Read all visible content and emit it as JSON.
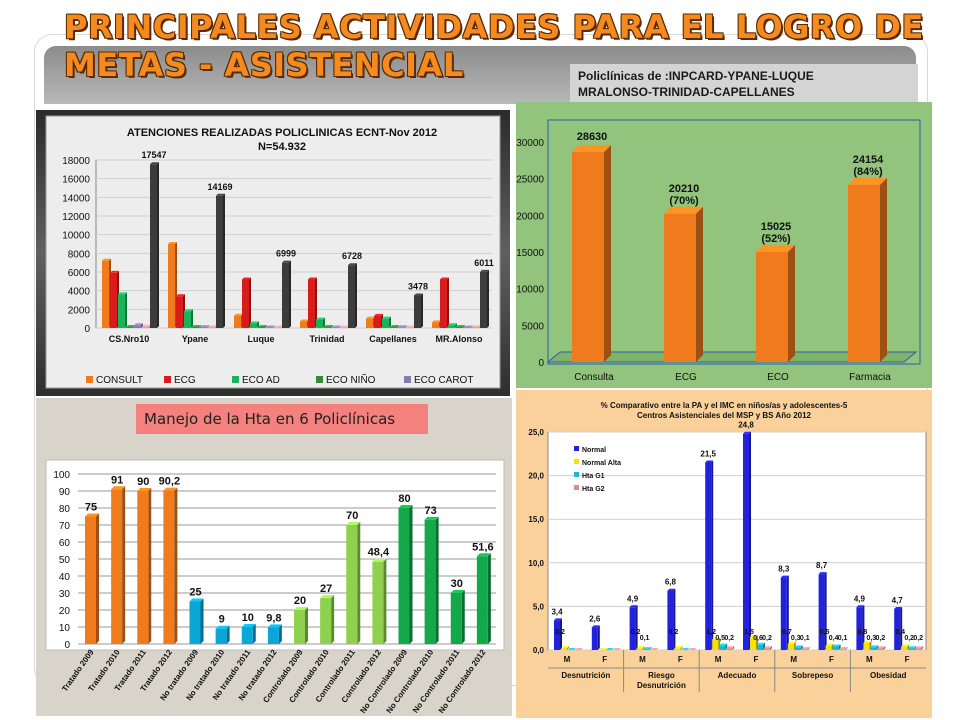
{
  "header": {
    "title": "PRINCIPALES ACTIVIDADES PARA EL LOGRO DE METAS - ASISTENCIAL",
    "subtitle_line1": "Policlínicas de :INPCARD-YPANE-LUQUE",
    "subtitle_line2": "MRALONSO-TRINIDAD-CAPELLANES"
  },
  "hta_label": "Manejo de la Hta en 6 Policlínicas",
  "colors": {
    "consult": "#f07b1d",
    "ecg": "#d81b1b",
    "eco_ad": "#1bb35a",
    "eco_nino": "#2e8b3a",
    "eco_carot": "#8a7ab0",
    "total": "#3c3c3c",
    "orange": "#f07b1d",
    "blue": "#0aa6d6",
    "lightgreen": "#8fd14f",
    "green": "#13a84a",
    "normal": "#2222dd",
    "normal_alta": "#f5e20a",
    "hta_g1": "#19b7d6",
    "hta_g2": "#e58a8a"
  },
  "chart_data": [
    {
      "type": "bar",
      "title_line1": "ATENCIONES REALIZADAS POLICLINICAS ECNT-Nov  2012",
      "title_line2": "N=54.932",
      "categories": [
        "CS.Nro10",
        "Ypane",
        "Luque",
        "Trinidad",
        "Capellanes",
        "MR.Alonso"
      ],
      "series": [
        {
          "name": "CONSULT",
          "values": [
            7200,
            9000,
            1300,
            700,
            1000,
            600
          ]
        },
        {
          "name": "ECG",
          "values": [
            5900,
            3400,
            5200,
            5200,
            1300,
            5200
          ]
        },
        {
          "name": "ECO AD",
          "values": [
            3600,
            1800,
            500,
            900,
            1000,
            300
          ]
        },
        {
          "name": "ECO NIÑO",
          "values": [
            100,
            100,
            100,
            100,
            100,
            100
          ]
        },
        {
          "name": "ECO CAROT",
          "values": [
            300,
            100,
            50,
            50,
            80,
            50
          ]
        },
        {
          "name": "",
          "values": [
            150,
            100,
            50,
            50,
            50,
            100
          ]
        },
        {
          "name": "",
          "values": [
            17547,
            14169,
            6999,
            6728,
            3478,
            6011
          ]
        }
      ],
      "total_labels": [
        "17547",
        "14169",
        "6999",
        "6728",
        "3478",
        "6011"
      ],
      "ylim": [
        0,
        18000
      ],
      "yticks": [
        0,
        2000,
        4000,
        6000,
        8000,
        10000,
        12000,
        14000,
        16000,
        18000
      ],
      "legend": [
        "CONSULT",
        "ECG",
        "ECO AD",
        "ECO NIÑO",
        "ECO CAROT"
      ],
      "legend_position": "bottom"
    },
    {
      "type": "bar",
      "categories": [
        "Consulta",
        "ECG",
        "ECO",
        "Farmacia"
      ],
      "values": [
        28630,
        20210,
        15025,
        24154
      ],
      "label_line1": [
        "28630",
        "20210",
        "15025",
        "24154"
      ],
      "label_line2": [
        "",
        "(70%)",
        "(52%)",
        "(84%)"
      ],
      "ylim": [
        0,
        30000
      ],
      "yticks": [
        0,
        5000,
        10000,
        15000,
        20000,
        25000,
        30000
      ]
    },
    {
      "type": "bar",
      "categories": [
        "Tratado 2009",
        "Tratado 2010",
        "Tratado 2011",
        "Tratado 2012",
        "No tratado 2009",
        "No tratado 2010",
        "No tratado 2011",
        "No tratado 2012",
        "Controlado 2009",
        "Controlado 2010",
        "Controlado 2011",
        "Controlado 2012",
        "No Controlado 2009",
        "No Controlado 2010",
        "No Controlado 2011",
        "No Controlado 2012"
      ],
      "values": [
        75,
        91,
        90,
        90.2,
        25,
        9,
        10,
        9.8,
        20,
        27,
        70,
        48.4,
        80,
        73,
        30,
        51.6
      ],
      "value_labels": [
        "75",
        "91",
        "90",
        "90,2",
        "25",
        "9",
        "10",
        "9,8",
        "20",
        "27",
        "70",
        "48,4",
        "80",
        "73",
        "30",
        "51,6"
      ],
      "groups": [
        "orange",
        "orange",
        "orange",
        "orange",
        "blue",
        "blue",
        "blue",
        "blue",
        "lightgreen",
        "lightgreen",
        "lightgreen",
        "lightgreen",
        "green",
        "green",
        "green",
        "green"
      ],
      "ylim": [
        0,
        100
      ],
      "yticks": [
        0,
        10,
        20,
        30,
        40,
        50,
        60,
        70,
        80,
        90,
        100
      ]
    },
    {
      "type": "bar",
      "title_line1": "% Comparativo entre la PA y el IMC en niños/as y adolescentes-5",
      "title_line2": "Centros Asistenciales del MSP y BS Año 2012",
      "x_sub": [
        "M",
        "F",
        "M",
        "F",
        "M",
        "F",
        "M",
        "F",
        "M",
        "F"
      ],
      "groups": [
        "Desnutrición",
        "Riesgo",
        "Adecuado",
        "Sobrepeso",
        "Obesidad"
      ],
      "group_line2": [
        "",
        "Desnutrición",
        "",
        "",
        ""
      ],
      "series": [
        {
          "name": "Normal",
          "values": [
            3.4,
            2.6,
            4.9,
            6.8,
            21.5,
            24.8,
            8.3,
            8.7,
            4.9,
            4.7
          ]
        },
        {
          "name": "Normal Alta",
          "values": [
            0.2,
            0,
            0.2,
            0.2,
            1.2,
            1.5,
            0.7,
            0.5,
            0.8,
            0.4
          ]
        },
        {
          "name": "Hta G1",
          "values": [
            0,
            0,
            0.1,
            0,
            0.5,
            0.6,
            0.3,
            0.4,
            0.3,
            0.2
          ]
        },
        {
          "name": "Hta G2",
          "values": [
            0,
            0,
            0,
            0,
            0.2,
            0.2,
            0.1,
            0.1,
            0.2,
            0.2
          ]
        }
      ],
      "normal_labels": [
        "3,4",
        "2,6",
        "4,9",
        "6,8",
        "21,5",
        "24,8",
        "8,3",
        "8,7",
        "4,9",
        "4,7"
      ],
      "small_labels": [
        [
          "0,2"
        ],
        [],
        [
          "0,2",
          "0,1"
        ],
        [
          "0,2"
        ],
        [
          "1,2",
          "0,5",
          "0,2"
        ],
        [
          "1,5",
          "0,6",
          "0,2"
        ],
        [
          "0,7",
          "0,3",
          "0,1"
        ],
        [
          "0,5",
          "0,4",
          "0,1"
        ],
        [
          "0,8",
          "0,3",
          "0,2"
        ],
        [
          "0,4",
          "0,2",
          "0,2"
        ]
      ],
      "ylim": [
        0,
        25
      ],
      "yticks": [
        "0,0",
        "5,0",
        "10,0",
        "15,0",
        "20,0",
        "25,0"
      ],
      "legend": [
        "Normal",
        "Normal Alta",
        "Hta G1",
        "Hta G2"
      ],
      "legend_position": "top-left"
    }
  ]
}
